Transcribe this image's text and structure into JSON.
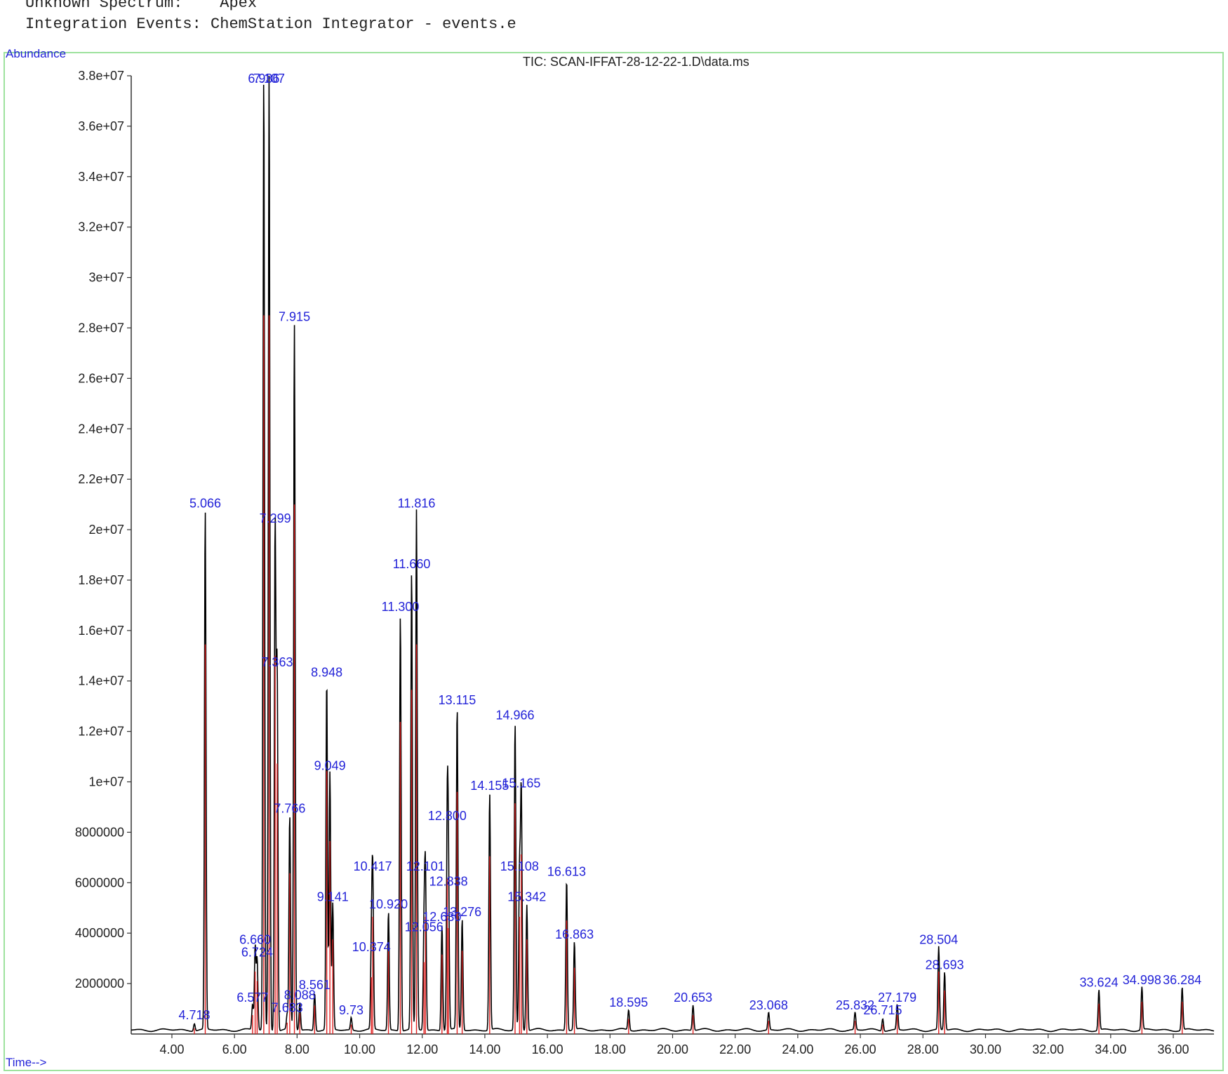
{
  "header": {
    "spectrum_label": "Unknown Spectrum:",
    "spectrum_value": "Apex",
    "events_label": "Integration Events:",
    "events_value": "ChemStation Integrator - events.e"
  },
  "colors": {
    "trace": "#000000",
    "integration": "#e02020",
    "label": "#2323d8",
    "frame": "#9ee29e",
    "axis": "#333333"
  },
  "chart_data": {
    "type": "line",
    "title": "TIC: SCAN-IFFAT-28-12-22-1.D\\data.ms",
    "ylabel": "Abundance",
    "xlabel": "Time-->",
    "xlim": [
      2.7,
      37.3
    ],
    "ylim": [
      0,
      38000000
    ],
    "x_ticks": [
      "4.00",
      "6.00",
      "8.00",
      "10.00",
      "12.00",
      "14.00",
      "16.00",
      "18.00",
      "20.00",
      "22.00",
      "24.00",
      "26.00",
      "28.00",
      "30.00",
      "32.00",
      "34.00",
      "36.00"
    ],
    "y_ticks": [
      "2000000",
      "4000000",
      "6000000",
      "8000000",
      "1e+07",
      "1.2e+07",
      "1.4e+07",
      "1.6e+07",
      "1.8e+07",
      "2e+07",
      "2.2e+07",
      "2.4e+07",
      "2.6e+07",
      "2.8e+07",
      "3e+07",
      "3.2e+07",
      "3.4e+07",
      "3.6e+07",
      "3.8e+07"
    ],
    "peaks": [
      {
        "rt": 4.718,
        "abundance": 300000,
        "label": "4.718"
      },
      {
        "rt": 5.066,
        "abundance": 20600000,
        "label": "5.066"
      },
      {
        "rt": 6.577,
        "abundance": 1000000,
        "label": "6.577"
      },
      {
        "rt": 6.66,
        "abundance": 3300000,
        "label": "6.660"
      },
      {
        "rt": 6.724,
        "abundance": 2800000,
        "label": "6.724"
      },
      {
        "rt": 6.936,
        "abundance": 38000000,
        "label": "6.936"
      },
      {
        "rt": 7.107,
        "abundance": 38000000,
        "label": "7.107"
      },
      {
        "rt": 7.299,
        "abundance": 20000000,
        "label": "7.299"
      },
      {
        "rt": 7.363,
        "abundance": 14300000,
        "label": "7.363"
      },
      {
        "rt": 7.683,
        "abundance": 600000,
        "label": "7.683"
      },
      {
        "rt": 7.766,
        "abundance": 8500000,
        "label": "7.766"
      },
      {
        "rt": 7.915,
        "abundance": 28000000,
        "label": "7.915"
      },
      {
        "rt": 8.088,
        "abundance": 1100000,
        "label": "8.088"
      },
      {
        "rt": 8.561,
        "abundance": 1500000,
        "label": "8.561"
      },
      {
        "rt": 8.948,
        "abundance": 13900000,
        "label": "8.948"
      },
      {
        "rt": 9.049,
        "abundance": 10200000,
        "label": "9.049"
      },
      {
        "rt": 9.141,
        "abundance": 5000000,
        "label": "9.141"
      },
      {
        "rt": 9.73,
        "abundance": 500000,
        "label": "9.73"
      },
      {
        "rt": 10.374,
        "abundance": 3000000,
        "label": "10.374"
      },
      {
        "rt": 10.417,
        "abundance": 6200000,
        "label": "10.417"
      },
      {
        "rt": 10.92,
        "abundance": 4700000,
        "label": "10.920"
      },
      {
        "rt": 11.3,
        "abundance": 16500000,
        "label": "11.300"
      },
      {
        "rt": 11.66,
        "abundance": 18200000,
        "label": "11.660"
      },
      {
        "rt": 11.816,
        "abundance": 20600000,
        "label": "11.816"
      },
      {
        "rt": 12.056,
        "abundance": 3800000,
        "label": "12.056"
      },
      {
        "rt": 12.101,
        "abundance": 6200000,
        "label": "12.101"
      },
      {
        "rt": 12.63,
        "abundance": 4200000,
        "label": "12.630"
      },
      {
        "rt": 12.8,
        "abundance": 8200000,
        "label": "12.800"
      },
      {
        "rt": 12.838,
        "abundance": 5600000,
        "label": "12.838"
      },
      {
        "rt": 13.115,
        "abundance": 12800000,
        "label": "13.115"
      },
      {
        "rt": 13.276,
        "abundance": 4400000,
        "label": "13.276"
      },
      {
        "rt": 14.155,
        "abundance": 9400000,
        "label": "14.155"
      },
      {
        "rt": 14.966,
        "abundance": 12200000,
        "label": "14.966"
      },
      {
        "rt": 15.108,
        "abundance": 6200000,
        "label": "15.108"
      },
      {
        "rt": 15.165,
        "abundance": 9500000,
        "label": "15.165"
      },
      {
        "rt": 15.342,
        "abundance": 5000000,
        "label": "15.342"
      },
      {
        "rt": 16.613,
        "abundance": 6000000,
        "label": "16.613"
      },
      {
        "rt": 16.863,
        "abundance": 3500000,
        "label": "16.863"
      },
      {
        "rt": 18.595,
        "abundance": 800000,
        "label": "18.595"
      },
      {
        "rt": 20.653,
        "abundance": 1000000,
        "label": "20.653"
      },
      {
        "rt": 23.068,
        "abundance": 700000,
        "label": "23.068"
      },
      {
        "rt": 25.832,
        "abundance": 700000,
        "label": "25.832"
      },
      {
        "rt": 26.715,
        "abundance": 500000,
        "label": "26.715"
      },
      {
        "rt": 27.179,
        "abundance": 1000000,
        "label": "27.179"
      },
      {
        "rt": 28.504,
        "abundance": 3300000,
        "label": "28.504"
      },
      {
        "rt": 28.693,
        "abundance": 2300000,
        "label": "28.693"
      },
      {
        "rt": 33.624,
        "abundance": 1600000,
        "label": "33.624"
      },
      {
        "rt": 34.998,
        "abundance": 1700000,
        "label": "34.998"
      },
      {
        "rt": 36.284,
        "abundance": 1700000,
        "label": "36.284"
      }
    ]
  }
}
